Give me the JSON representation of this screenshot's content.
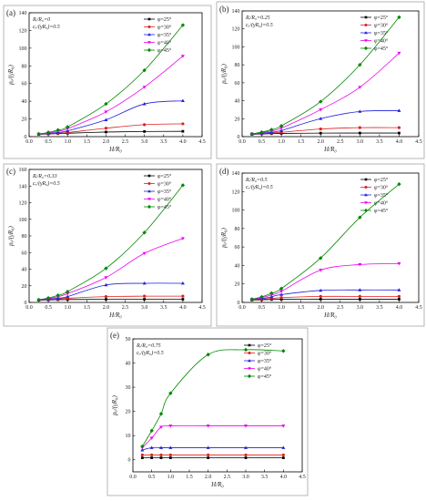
{
  "series_colors": [
    "#000000",
    "#dd2020",
    "#2020dd",
    "#ee00ee",
    "#008800"
  ],
  "series_markers": [
    "square",
    "circle",
    "triangle-up",
    "triangle-down",
    "diamond"
  ],
  "chart_data": [
    {
      "panel_label": "(a)",
      "type": "line",
      "annotations": [
        "Rᵢ/R₀=0",
        "cᵤ/(γR₀)=0.5"
      ],
      "xlabel": "H/R₀",
      "ylabel": "pᵤ/(γR₀)",
      "xlim": [
        0,
        4.5
      ],
      "ylim": [
        0,
        140
      ],
      "xticks": [
        "0.0",
        "0.5",
        "1.0",
        "1.5",
        "2.0",
        "2.5",
        "3.0",
        "3.5",
        "4.0",
        "4.5"
      ],
      "yticks": [
        "0",
        "20",
        "40",
        "60",
        "80",
        "100",
        "120",
        "140"
      ],
      "legend_position": "top-right",
      "grid": false,
      "x": [
        0.25,
        0.5,
        0.75,
        1.0,
        2.0,
        3.0,
        4.0
      ],
      "series": [
        {
          "name": "φ=25°",
          "values": [
            2.6,
            3.0,
            3.4,
            3.8,
            5.2,
            5.8,
            6.0
          ]
        },
        {
          "name": "φ=30°",
          "values": [
            2.7,
            3.2,
            3.9,
            4.6,
            9.5,
            13.5,
            14.5
          ]
        },
        {
          "name": "φ=35°",
          "values": [
            2.8,
            3.6,
            4.8,
            6.5,
            19,
            37,
            40.5
          ]
        },
        {
          "name": "φ=40°",
          "values": [
            2.9,
            4.2,
            6.2,
            9,
            28,
            56,
            91
          ]
        },
        {
          "name": "φ=45°",
          "values": [
            3.0,
            4.8,
            7.5,
            11,
            37,
            75,
            126
          ]
        }
      ]
    },
    {
      "panel_label": "(b)",
      "type": "line",
      "annotations": [
        "Rᵢ/R₀=0.25",
        "cᵤ/(γR₀)=0.5"
      ],
      "xlabel": "H/R₀",
      "ylabel": "pᵤ/(γR₀)",
      "xlim": [
        0,
        4.5
      ],
      "ylim": [
        0,
        140
      ],
      "xticks": [
        "0.0",
        "0.5",
        "1.0",
        "1.5",
        "2.0",
        "2.5",
        "3.0",
        "3.5",
        "4.0",
        "4.5"
      ],
      "yticks": [
        "0",
        "20",
        "40",
        "60",
        "80",
        "100",
        "120",
        "140"
      ],
      "legend_position": "top-right",
      "grid": false,
      "x": [
        0.25,
        0.5,
        0.75,
        1.0,
        2.0,
        3.0,
        4.0
      ],
      "series": [
        {
          "name": "φ=25°",
          "values": [
            2.6,
            3.0,
            3.3,
            3.6,
            3.9,
            4.0,
            4.0
          ]
        },
        {
          "name": "φ=30°",
          "values": [
            2.7,
            3.3,
            4.0,
            4.8,
            8.5,
            10,
            10
          ]
        },
        {
          "name": "φ=35°",
          "values": [
            2.8,
            3.7,
            5.0,
            6.8,
            20,
            28,
            29
          ]
        },
        {
          "name": "φ=40°",
          "values": [
            3.0,
            4.4,
            6.5,
            9.5,
            30,
            55,
            93
          ]
        },
        {
          "name": "φ=45°",
          "values": [
            3.1,
            5.0,
            7.8,
            12,
            39,
            80,
            133
          ]
        }
      ]
    },
    {
      "panel_label": "(c)",
      "type": "line",
      "annotations": [
        "Rᵢ/R₀=0.33",
        "cᵤ/(γR₀)=0.5"
      ],
      "xlabel": "H/R₀",
      "ylabel": "pᵤ/(γR₀)",
      "xlim": [
        0,
        4.5
      ],
      "ylim": [
        0,
        160
      ],
      "xticks": [
        "0.0",
        "0.5",
        "1.0",
        "1.5",
        "2.0",
        "2.5",
        "3.0",
        "3.5",
        "4.0",
        "4.5"
      ],
      "yticks": [
        "0",
        "20",
        "40",
        "60",
        "80",
        "100",
        "120",
        "140",
        "160"
      ],
      "legend_position": "top-right",
      "grid": false,
      "x": [
        0.25,
        0.5,
        0.75,
        1.0,
        2.0,
        3.0,
        4.0
      ],
      "series": [
        {
          "name": "φ=25°",
          "values": [
            2.6,
            3.0,
            3.3,
            3.5,
            3.7,
            3.8,
            3.8
          ]
        },
        {
          "name": "φ=30°",
          "values": [
            2.7,
            3.4,
            4.2,
            5.0,
            7.0,
            7.5,
            7.5
          ]
        },
        {
          "name": "φ=35°",
          "values": [
            2.9,
            3.9,
            5.3,
            7.0,
            21,
            23,
            23
          ]
        },
        {
          "name": "φ=40°",
          "values": [
            3.0,
            4.6,
            7.0,
            10.5,
            30,
            59,
            77
          ]
        },
        {
          "name": "φ=45°",
          "values": [
            3.2,
            5.3,
            8.5,
            13,
            41,
            84,
            141
          ]
        }
      ]
    },
    {
      "panel_label": "(d)",
      "type": "line",
      "annotations": [
        "Rᵢ/R₀=0.5",
        "cᵤ/(γR₀)=0.5"
      ],
      "xlabel": "H/R₀",
      "ylabel": "pᵤ/(γR₀)",
      "xlim": [
        0,
        4.5
      ],
      "ylim": [
        0,
        140
      ],
      "xticks": [
        "0.0",
        "0.5",
        "1.0",
        "1.5",
        "2.0",
        "2.5",
        "3.0",
        "3.5",
        "4.0",
        "4.5"
      ],
      "yticks": [
        "0",
        "20",
        "40",
        "60",
        "80",
        "100",
        "120",
        "140"
      ],
      "legend_position": "top-right",
      "grid": false,
      "x": [
        0.25,
        0.5,
        0.75,
        1.0,
        2.0,
        3.0,
        4.0
      ],
      "series": [
        {
          "name": "φ=25°",
          "values": [
            2.6,
            2.9,
            3.2,
            3.4,
            3.5,
            3.5,
            3.5
          ]
        },
        {
          "name": "φ=30°",
          "values": [
            2.8,
            3.5,
            4.3,
            5.2,
            6.5,
            6.5,
            6.5
          ]
        },
        {
          "name": "φ=35°",
          "values": [
            3.0,
            4.2,
            6.0,
            8.5,
            13,
            13.5,
            13.5
          ]
        },
        {
          "name": "φ=40°",
          "values": [
            3.3,
            5.2,
            8.0,
            12,
            35,
            41,
            42
          ]
        },
        {
          "name": "φ=45°",
          "values": [
            3.5,
            6.0,
            10,
            15,
            48,
            92,
            128
          ]
        }
      ]
    },
    {
      "panel_label": "(e)",
      "type": "line",
      "annotations": [
        "Rᵢ/R₀=0.75",
        "cᵤ/(γR₀)=0.5"
      ],
      "xlabel": "H/R₀",
      "ylabel": "pᵤ/(γR₀)",
      "xlim": [
        0,
        4.5
      ],
      "ylim": [
        -5,
        50
      ],
      "xticks": [
        "0.0",
        "0.5",
        "1.0",
        "1.5",
        "2.0",
        "2.5",
        "3.0",
        "3.5",
        "4.0",
        "4.5"
      ],
      "yticks": [
        "0",
        "10",
        "20",
        "30",
        "40",
        "50"
      ],
      "legend_position": "top-right",
      "grid": false,
      "x": [
        0.25,
        0.5,
        0.75,
        1.0,
        2.0,
        3.0,
        4.0
      ],
      "series": [
        {
          "name": "φ=25°",
          "values": [
            0.8,
            0.8,
            0.8,
            0.8,
            0.8,
            0.8,
            0.8
          ]
        },
        {
          "name": "φ=30°",
          "values": [
            2.0,
            2.0,
            2.0,
            2.0,
            2.0,
            2.0,
            2.0
          ]
        },
        {
          "name": "φ=35°",
          "values": [
            4.0,
            5.0,
            5.0,
            5.0,
            5.0,
            5.0,
            5.0
          ]
        },
        {
          "name": "φ=40°",
          "values": [
            5.0,
            9.0,
            13.5,
            14,
            14,
            14,
            14
          ]
        },
        {
          "name": "φ=45°",
          "values": [
            5.5,
            12,
            19,
            27.5,
            43.5,
            45.5,
            45
          ]
        }
      ]
    }
  ]
}
